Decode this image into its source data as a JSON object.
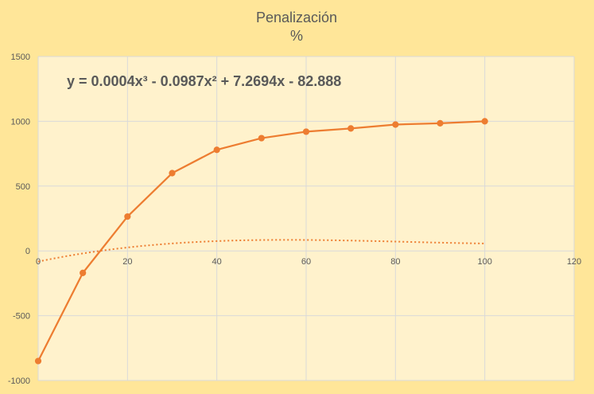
{
  "chart_data": {
    "type": "line",
    "title": "Penalización",
    "subtitle": "%",
    "xlabel": "",
    "ylabel": "",
    "xlim": [
      0,
      120
    ],
    "ylim": [
      -1000,
      1500
    ],
    "x_ticks": [
      "0",
      "20",
      "40",
      "60",
      "80",
      "100",
      "120"
    ],
    "y_ticks": [
      "-1000",
      "-500",
      "0",
      "500",
      "1000",
      "1500"
    ],
    "grid": true,
    "legend": "none",
    "series": [
      {
        "x": [
          0,
          10,
          20,
          30,
          40,
          50,
          60,
          70,
          80,
          90,
          100
        ],
        "y": [
          -850,
          -170,
          265,
          600,
          780,
          870,
          920,
          945,
          975,
          985,
          1000
        ],
        "color": "#ed7d31",
        "markers": true
      }
    ],
    "trendline": {
      "type": "polynomial",
      "order": 3,
      "coefficients": [
        0.0004,
        -0.0987,
        7.2694,
        -82.888
      ],
      "equation": "y = 0.0004x³ - 0.0987x² + 7.2694x - 82.888",
      "color": "#ed7d31",
      "style": "dotted"
    },
    "colors": {
      "chart_background": "#ffe699",
      "plot_background": "#fff2cc",
      "grid": "#d9d9d9",
      "text": "#595959"
    }
  }
}
